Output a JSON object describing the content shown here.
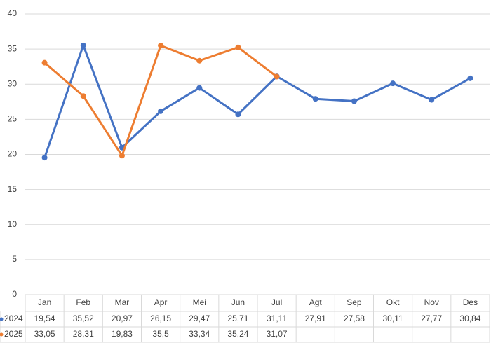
{
  "chart_data": {
    "type": "line",
    "categories": [
      "Jan",
      "Feb",
      "Mar",
      "Apr",
      "Mei",
      "Jun",
      "Jul",
      "Agt",
      "Sep",
      "Okt",
      "Nov",
      "Des"
    ],
    "series": [
      {
        "name": "2024",
        "color": "#4472c4",
        "values": [
          19.54,
          35.52,
          20.97,
          26.15,
          29.47,
          25.71,
          31.11,
          27.91,
          27.58,
          30.11,
          27.77,
          30.84
        ],
        "value_labels": [
          "19,54",
          "35,52",
          "20,97",
          "26,15",
          "29,47",
          "25,71",
          "31,11",
          "27,91",
          "27,58",
          "30,11",
          "27,77",
          "30,84"
        ]
      },
      {
        "name": "2025",
        "color": "#ed7d31",
        "values": [
          33.05,
          28.31,
          19.83,
          35.5,
          33.34,
          35.24,
          31.07,
          null,
          null,
          null,
          null,
          null
        ],
        "value_labels": [
          "33,05",
          "28,31",
          "19,83",
          "35,5",
          "33,34",
          "35,24",
          "31,07",
          null,
          null,
          null,
          null,
          null
        ]
      }
    ],
    "ylim": [
      0,
      40
    ],
    "yticks": [
      0,
      5,
      10,
      15,
      20,
      25,
      30,
      35,
      40
    ],
    "grid": true
  }
}
